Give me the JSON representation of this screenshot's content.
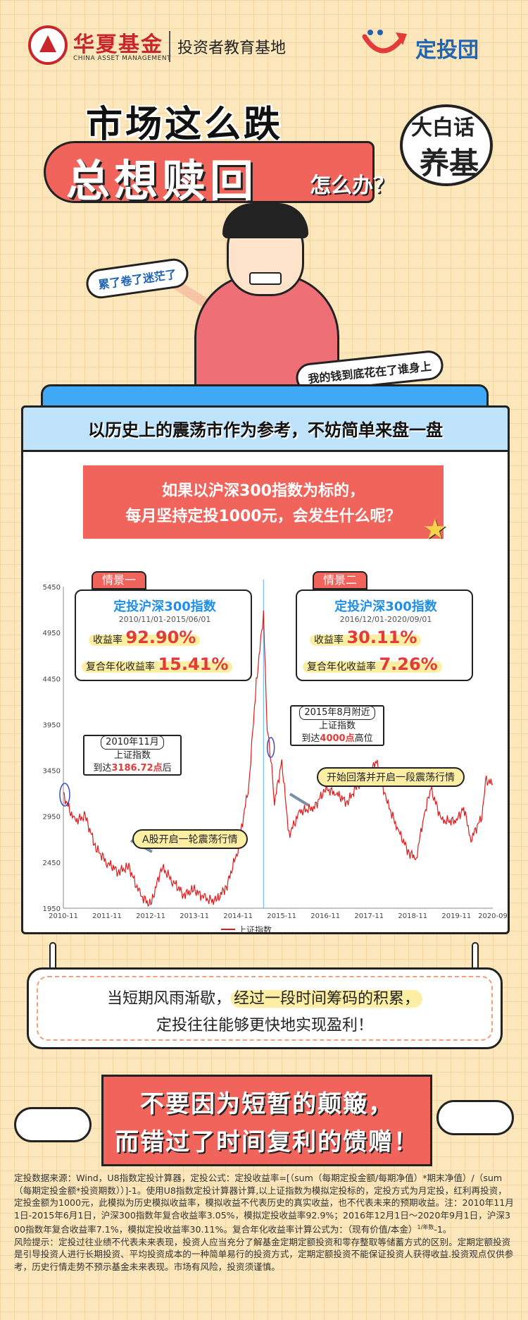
{
  "header": {
    "brand_cn": "华夏基金",
    "brand_en": "CHINA ASSET MANAGEMENT",
    "brand_sub": "投资者教育基地",
    "dingtou_logo": "定投団"
  },
  "titles": {
    "line1": "市场这么跌",
    "line2": "总想赎回",
    "line3": "怎么办？",
    "badge_line1": "大白话",
    "badge_line2": "养基"
  },
  "character": {
    "bubble_left": "累了卷了迷茫了",
    "bubble_right": "我的钱到底花在了谁身上"
  },
  "card": {
    "title": "以历史上的震荡市作为参考，不妨简单来盘一盘",
    "question_line1": "如果以沪深300指数为标的，",
    "question_line2": "每月坚持定投1000元，会发生什么呢？"
  },
  "scenario1": {
    "tab": "情景一",
    "title": "定投沪深300指数",
    "date": "2010/11/01-2015/06/01",
    "return_label": "收益率",
    "return_value": "92.90%",
    "annual_label": "复合年化收益率",
    "annual_value": "15.41%"
  },
  "scenario2": {
    "tab": "情景二",
    "title": "定投沪深300指数",
    "date": "2016/12/01-2020/09/01",
    "return_label": "收益率",
    "return_value": "30.11%",
    "annual_label": "复合年化收益率",
    "annual_value": "7.26%"
  },
  "callouts": {
    "c1_head": "2010年11月",
    "c1_l1": "上证指数",
    "c1_l2a": "到达",
    "c1_l2b": "3186.72点",
    "c1_l2c": "后",
    "c2_head": "2015年8月附近",
    "c2_l1": "上证指数",
    "c2_l2a": "到达",
    "c2_l2b": "4000点",
    "c2_l2c": "高位",
    "pill1": "A股开启一轮震荡行情",
    "pill2": "开始回落并开启一段震荡行情"
  },
  "chart_data": {
    "type": "line",
    "title": "",
    "xlabel": "",
    "ylabel": "",
    "ylim": [
      1950,
      5450
    ],
    "yticks": [
      1950,
      2450,
      2950,
      3450,
      3950,
      4450,
      4950,
      5450
    ],
    "xticks": [
      "2010-11",
      "2011-11",
      "2012-11",
      "2013-11",
      "2014-11",
      "2015-11",
      "2016-11",
      "2017-11",
      "2018-11",
      "2019-11",
      "2020-09"
    ],
    "legend": "bottom",
    "series": [
      {
        "name": "上证指数",
        "color": "#e31a1c",
        "x": [
          "2010-11",
          "2011-02",
          "2011-05",
          "2011-08",
          "2011-11",
          "2012-02",
          "2012-05",
          "2012-08",
          "2012-11",
          "2013-02",
          "2013-05",
          "2013-08",
          "2013-11",
          "2014-02",
          "2014-05",
          "2014-08",
          "2014-11",
          "2015-02",
          "2015-04",
          "2015-06",
          "2015-07",
          "2015-08",
          "2015-09",
          "2015-11",
          "2016-01",
          "2016-04",
          "2016-08",
          "2016-11",
          "2017-02",
          "2017-05",
          "2017-08",
          "2017-11",
          "2018-01",
          "2018-04",
          "2018-07",
          "2018-10",
          "2018-12",
          "2019-02",
          "2019-04",
          "2019-07",
          "2019-11",
          "2020-01",
          "2020-03",
          "2020-06",
          "2020-07",
          "2020-09"
        ],
        "values": [
          3186,
          2900,
          2950,
          2600,
          2450,
          2350,
          2400,
          2100,
          1980,
          2400,
          2250,
          2100,
          2150,
          2050,
          2030,
          2200,
          2600,
          3300,
          4400,
          5150,
          3900,
          3600,
          3100,
          3550,
          2750,
          3000,
          3050,
          3250,
          3200,
          3100,
          3300,
          3400,
          3550,
          3100,
          2800,
          2550,
          2500,
          2950,
          3250,
          2900,
          2900,
          3050,
          2700,
          2950,
          3350,
          3300
        ]
      }
    ]
  },
  "chart_legend": "上证指数",
  "note": {
    "line1a": "当短期风雨渐歇，",
    "line1b": "经过一段时间筹码的积累，",
    "line2": "定投往往能够更快地实现盈利！"
  },
  "slogan": {
    "line1": "不要因为短暂的颠簸，",
    "line2": "而错过了时间复利的馈赠！"
  },
  "disclaimer": {
    "p1": "定投数据来源：Wind，U8指数定投计算器，定投公式：定投收益率=[（sum（每期定投金额/每期净值）*期末净值）/（sum（每期定投金额*投资期数））]-1。使用U8指数定投计算器计算,以上证指数为模拟定投标的，定投方式为月定投，红利再投资，定投金额为1000元，此模拟为历史模拟收益率，模拟收益不代表历史的真实收益，也不代表未来的预期收益。注：2010年11月1日-2015年6月1日，沪深300指数年复合收益率3.05%，模拟定投收益率92.9%；2016年12月1日～2020年9月1日，沪深300指数年复合收益率7.1%，模拟定投收益率30.11%。复合年化收益率计算公式为：（现有价值/本金）",
    "p1_sup": "1/年数",
    "p1_end": "-1。",
    "p2": "风险提示：定投过往业绩不代表未来表现，投资人应当充分了解基金定期定额投资和零存整取等储蓄方式的区别。定期定额投资是引导投资人进行长期投资、平均投资成本的一种简单易行的投资方式，定期定额投资不能保证投资人获得收益.投资观点仅供参考，历史行情走势不预示基金未来表现。市场有风险，投资须谨慎。"
  }
}
